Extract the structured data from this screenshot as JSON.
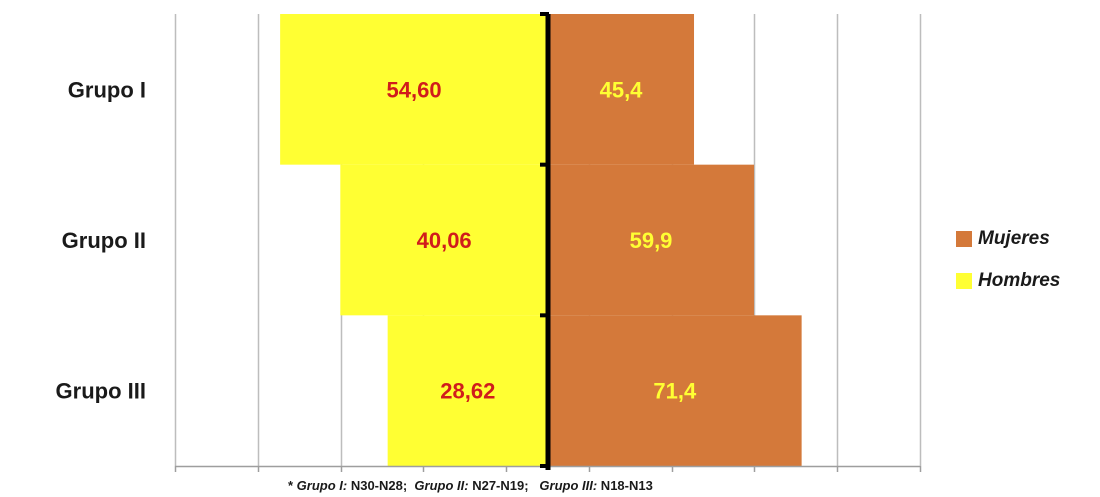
{
  "chart_data": {
    "type": "bar",
    "orientation": "horizontal-diverging",
    "categories": [
      "Grupo I",
      "Grupo II",
      "Grupo III"
    ],
    "series": [
      {
        "name": "Hombres",
        "values": [
          54.6,
          40.06,
          28.62
        ],
        "labels": [
          "54,60",
          "40,06",
          "28,62"
        ],
        "color": "#ffff33",
        "label_color": "#d01c1c",
        "side": "left"
      },
      {
        "name": "Mujeres",
        "values": [
          45.4,
          59.9,
          71.4
        ],
        "labels": [
          "45,4",
          "59,9",
          "71,4"
        ],
        "color": "#d4793a",
        "label_color": "#ffff33",
        "side": "right"
      }
    ],
    "xlim": [
      -80,
      100
    ],
    "grid": "vertical",
    "legend_position": "right"
  },
  "legend": {
    "items": [
      {
        "label": "Mujeres",
        "color": "#d4793a"
      },
      {
        "label": "Hombres",
        "color": "#ffff33"
      }
    ]
  },
  "footnote": {
    "prefix": "* ",
    "g1_label": "Grupo I:",
    "g1_value": " N30-N28;  ",
    "g2_label": "Grupo II:",
    "g2_value": " N27-N19;   ",
    "g3_label": "Grupo III:",
    "g3_value": " N18-N13"
  }
}
